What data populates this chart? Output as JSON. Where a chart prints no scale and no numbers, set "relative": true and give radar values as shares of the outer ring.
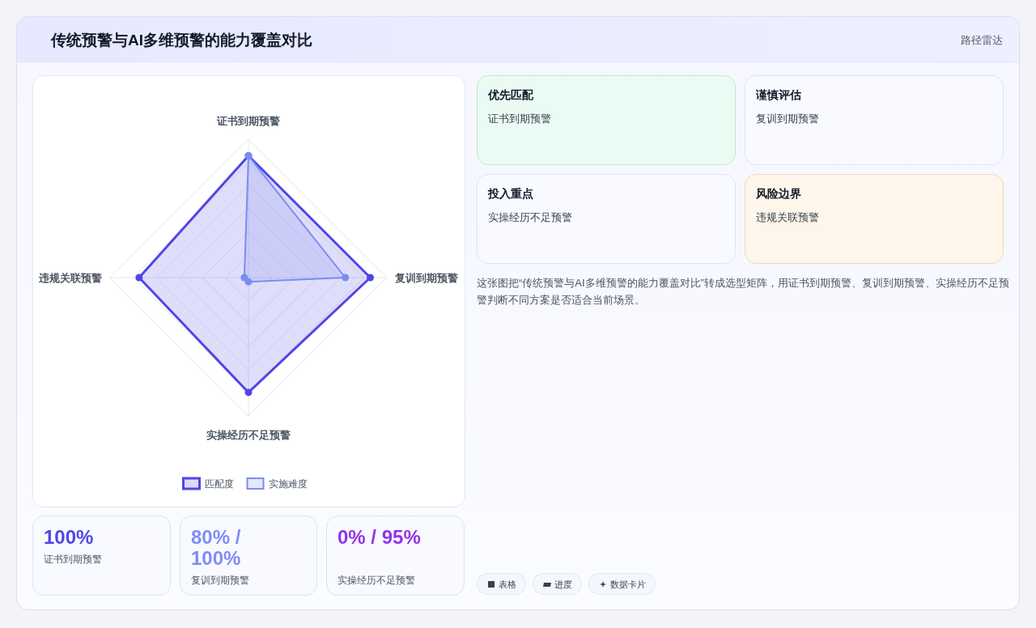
{
  "chart_data": [
    {
      "type": "other",
      "title": "传统预警与AI多维预警的能力覆盖对比",
      "subtitle": "路径雷达"
    },
    {
      "type": "radar",
      "relative": true,
      "categories": [
        "证书到期预警",
        "复训到期预警",
        "实操经历不足预警",
        "违规关联预警"
      ],
      "series": [
        {
          "name": "匹配度",
          "color": "#4f46e5",
          "values": [
            0.88,
            0.88,
            0.83,
            0.79
          ]
        },
        {
          "name": "实施难度",
          "color": "#7b8cf2",
          "values": [
            0.88,
            0.7,
            0.03,
            0.03
          ]
        }
      ],
      "marker": "circle",
      "legend": "bottom"
    },
    {
      "type": "other",
      "annotations": [
        "100%",
        "证书到期预警",
        "80% / 100%",
        "复训到期预警",
        "0% / 95%",
        "实操经历不足预警"
      ]
    },
    {
      "type": "other",
      "annotations": [
        "优先匹配",
        "证书到期预警",
        "谨慎评估",
        "复训到期预警",
        "投入重点",
        "实操经历不足预警",
        "风险边界",
        "违规关联预警",
        "这张图把“传统预警与AI多维预警的能力覆盖对比”转成选型矩阵，用证书到期预警、复训到期预警、实操经历不足预警判断不同方案是否适合当前场景。",
        "表格",
        "进度",
        "数据卡片"
      ]
    }
  ]
}
